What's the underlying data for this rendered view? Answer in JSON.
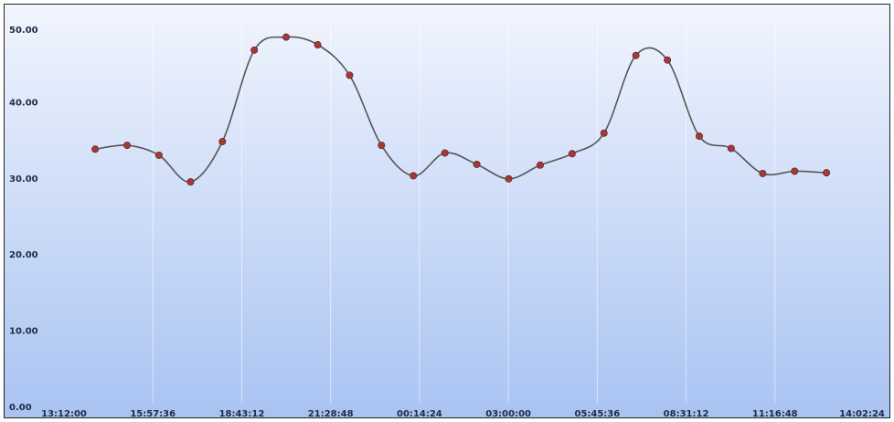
{
  "chart_data": {
    "type": "line",
    "title": "",
    "xlabel": "",
    "ylabel": "",
    "ylim": [
      0,
      50
    ],
    "yticks": [
      "0.00",
      "10.00",
      "20.00",
      "30.00",
      "40.00",
      "50.00"
    ],
    "xticks": [
      "13:12:00",
      "15:57:36",
      "18:43:12",
      "21:28:48",
      "00:14:24",
      "03:00:00",
      "05:45:36",
      "08:31:12",
      "11:16:48",
      "14:02:24"
    ],
    "xlim_hours": [
      0,
      24.84
    ],
    "grid": true,
    "legend": "none",
    "line_color": "#555555",
    "marker_color": "#a33a3a",
    "series": [
      {
        "x_hours": [
          0.97,
          1.96,
          2.95,
          3.93,
          4.92,
          5.91,
          6.9,
          7.88,
          8.87,
          9.86,
          10.85,
          11.83,
          12.82,
          13.81,
          14.79,
          15.78,
          16.77,
          17.76,
          18.74,
          19.73,
          20.72,
          21.7,
          22.69,
          23.68
        ],
        "values": [
          33.3,
          33.8,
          32.5,
          29.0,
          34.3,
          46.3,
          48.0,
          47.0,
          43.0,
          33.8,
          29.8,
          32.8,
          31.3,
          29.4,
          31.2,
          32.7,
          35.4,
          45.6,
          45.0,
          35.0,
          33.4,
          30.1,
          30.4,
          30.2
        ]
      }
    ]
  }
}
